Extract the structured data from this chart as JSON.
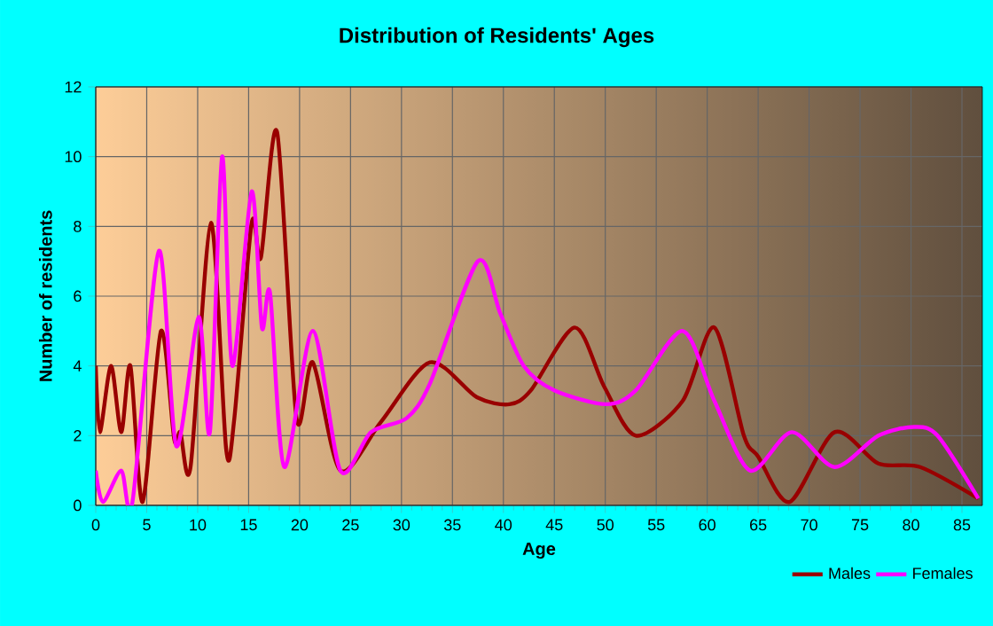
{
  "chart_data": {
    "type": "line",
    "title": "Distribution of Residents' Ages",
    "xlabel": "Age",
    "ylabel": "Number of residents",
    "xlim": [
      0,
      87
    ],
    "ylim": [
      0,
      12
    ],
    "xticks": [
      0,
      5,
      10,
      15,
      20,
      25,
      30,
      35,
      40,
      45,
      50,
      55,
      60,
      65,
      70,
      75,
      80,
      85
    ],
    "yticks": [
      0,
      2,
      4,
      6,
      8,
      10,
      12
    ],
    "grid": true,
    "legend": "bottom right",
    "marker": "none",
    "line_style": "solid",
    "series": [
      {
        "name": "Males",
        "color": "#990000",
        "x": [
          0,
          0.4,
          1.5,
          2.5,
          3.4,
          4.6,
          6.4,
          7.7,
          8.3,
          9.3,
          11.3,
          12.8,
          13.6,
          15.3,
          16.2,
          17.8,
          19.7,
          21.3,
          24,
          28,
          32.8,
          37.4,
          40.6,
          42.7,
          47,
          49.9,
          53,
          57.6,
          60.7,
          63.6,
          65,
          68.1,
          72.5,
          76.8,
          80.9,
          86.6
        ],
        "values": [
          4,
          2.1,
          4,
          2.1,
          4,
          0.1,
          5,
          1.9,
          2.1,
          1.1,
          8.1,
          1.6,
          2.5,
          8.1,
          7.1,
          10.7,
          2.5,
          4.1,
          1,
          2.4,
          4.1,
          3.1,
          2.9,
          3.3,
          5.1,
          3.4,
          2,
          3,
          5.1,
          2,
          1.4,
          0.1,
          2.1,
          1.2,
          1.1,
          0.2
        ]
      },
      {
        "name": "Females",
        "color": "#ff00ff",
        "x": [
          0,
          0.7,
          2.5,
          3.6,
          6.2,
          7.9,
          10.1,
          11.2,
          12.4,
          13.4,
          15.3,
          16.3,
          17.1,
          18.5,
          21.3,
          24,
          27,
          30.5,
          32.8,
          37.5,
          39.7,
          42,
          45,
          50.1,
          53,
          57.6,
          60.7,
          64.2,
          68.3,
          72.5,
          76.8,
          80.3,
          82.6,
          86.6
        ],
        "values": [
          1,
          0.1,
          1,
          0.1,
          7.3,
          1.7,
          5.4,
          2.1,
          10,
          4,
          9,
          5.1,
          6.1,
          1.1,
          5,
          1,
          2.1,
          2.5,
          3.5,
          7,
          5.5,
          4,
          3.3,
          2.9,
          3.3,
          5,
          3,
          1,
          2.1,
          1.1,
          2,
          2.25,
          2,
          0.2
        ]
      }
    ]
  }
}
